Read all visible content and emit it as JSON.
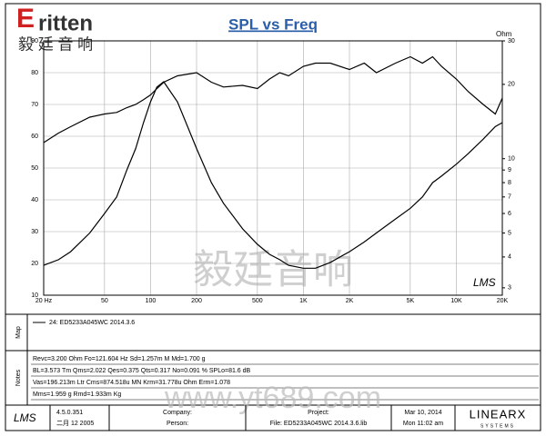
{
  "header": {
    "logo_initial": "E",
    "logo_text": "ritten",
    "logo_cn": "毅 廷 音 响"
  },
  "chart_data": {
    "type": "line",
    "title": "SPL vs Freq",
    "y2_label": "Ohm",
    "x": [
      20,
      25,
      30,
      40,
      50,
      60,
      70,
      80,
      90,
      100,
      110,
      122,
      150,
      200,
      250,
      300,
      400,
      500,
      600,
      700,
      800,
      1000,
      1200,
      1500,
      2000,
      2500,
      3000,
      4000,
      5000,
      6000,
      7000,
      8000,
      10000,
      12000,
      15000,
      18000,
      20000
    ],
    "series": [
      {
        "color": "#000000",
        "values": [
          58,
          61,
          63,
          66,
          67,
          67.5,
          69,
          70,
          71.5,
          73,
          75,
          77,
          79,
          80,
          77,
          75.5,
          76,
          75,
          78,
          80,
          79,
          82,
          83,
          83,
          81,
          83,
          80,
          83,
          85,
          83,
          85,
          82,
          78,
          74,
          70,
          67,
          72
        ]
      },
      {
        "color": "#000000",
        "axis": "y2",
        "values": [
          3.7,
          3.9,
          4.2,
          5,
          6,
          7,
          9,
          11,
          14,
          17,
          19.5,
          20.5,
          17,
          11,
          8,
          6.6,
          5.2,
          4.5,
          4.1,
          3.9,
          3.7,
          3.6,
          3.6,
          3.8,
          4.2,
          4.6,
          5,
          5.7,
          6.3,
          7,
          8,
          8.5,
          9.5,
          10.5,
          12,
          13.5,
          14
        ]
      }
    ],
    "xscale": "log",
    "xlim": [
      20,
      20000
    ],
    "xticks": [
      {
        "value": 20,
        "label": "20 Hz"
      },
      50,
      100,
      200,
      500,
      {
        "value": 1000,
        "label": "1K"
      },
      {
        "value": 2000,
        "label": "2K"
      },
      {
        "value": 5000,
        "label": "5K"
      },
      {
        "value": 10000,
        "label": "10K"
      },
      {
        "value": 20000,
        "label": "20K"
      }
    ],
    "ylim": [
      10,
      90
    ],
    "yticks": [
      10,
      20,
      30,
      40,
      50,
      60,
      70,
      80,
      90
    ],
    "y2scale": "log",
    "y2lim": [
      2.8,
      30
    ],
    "y2ticks": [
      3,
      4,
      5,
      6,
      7,
      8,
      9,
      10,
      20,
      30
    ],
    "grid": true,
    "annotation": "LMS"
  },
  "watermark": {
    "cn": "毅廷音响",
    "url": "www.yt689.com"
  },
  "map": {
    "label": "Map",
    "legend": "24:  ED5233A045WC   2014.3.6"
  },
  "notes": {
    "label": "Notes",
    "lines": [
      "Revc=3.200 Ohm  Fo=121.604 Hz  Sd=1.257m M Md=1.700 g",
      "BL=3.573 Tm  Qms=2.022  Qes=0.375  Qts=0.317  No=0.091 %  SPLo=81.6 dB",
      "Vas=196.213m Ltr  Cms=874.518u MN  Krm=31.778u Ohm  Erm=1.078",
      "Mms=1.959 g  Rmd=1.933m Kg"
    ]
  },
  "footer": {
    "logo": "LMS",
    "version": "4.5.0.351",
    "build": "二月 12 2005",
    "company": "Company:",
    "person": "Person:",
    "project": "Project:",
    "file": "File: ED5233A045WC  2014.3.6.lib",
    "date": "Mar 10, 2014",
    "time": "Mon 11:02 am",
    "brand": "LINEARX",
    "brand_sub": "SYSTEMS"
  }
}
